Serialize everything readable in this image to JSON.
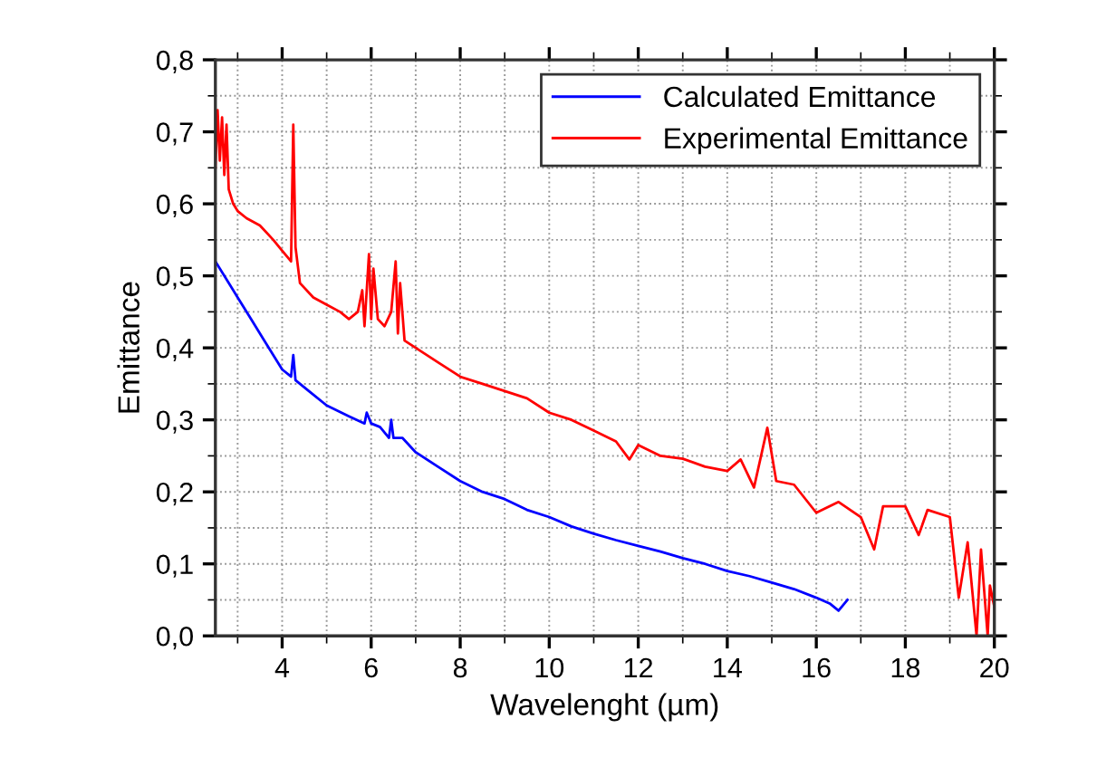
{
  "chart_data": {
    "type": "line",
    "xlabel": "Wavelenght (µm)",
    "ylabel": "Emittance",
    "xlim": [
      2.5,
      20
    ],
    "ylim": [
      0,
      0.8
    ],
    "xticks": [
      4,
      6,
      8,
      10,
      12,
      14,
      16,
      18,
      20
    ],
    "yticks": [
      {
        "value": 0,
        "label": "0,0"
      },
      {
        "value": 0.1,
        "label": "0,1"
      },
      {
        "value": 0.2,
        "label": "0,2"
      },
      {
        "value": 0.3,
        "label": "0,3"
      },
      {
        "value": 0.4,
        "label": "0,4"
      },
      {
        "value": 0.5,
        "label": "0,5"
      },
      {
        "value": 0.6,
        "label": "0,6"
      },
      {
        "value": 0.7,
        "label": "0,7"
      },
      {
        "value": 0.8,
        "label": "0,8"
      }
    ],
    "grid": true,
    "legend": "top right",
    "marker": "none",
    "line_style": "solid",
    "series": [
      {
        "name": "Calculated Emittance",
        "color": "#0000ff",
        "x": [
          2.5,
          2.8,
          3.0,
          3.3,
          3.6,
          4.0,
          4.2,
          4.25,
          4.3,
          4.6,
          5.0,
          5.5,
          5.85,
          5.9,
          6.0,
          6.2,
          6.4,
          6.45,
          6.5,
          6.7,
          7.0,
          7.5,
          8.0,
          8.5,
          9.0,
          9.5,
          10.0,
          10.5,
          11.0,
          11.5,
          12.0,
          12.5,
          13.0,
          13.5,
          14.0,
          14.5,
          15.0,
          15.5,
          16.0,
          16.3,
          16.5,
          16.7
        ],
        "values": [
          0.52,
          0.49,
          0.47,
          0.44,
          0.41,
          0.37,
          0.36,
          0.39,
          0.355,
          0.34,
          0.32,
          0.305,
          0.295,
          0.31,
          0.295,
          0.29,
          0.275,
          0.3,
          0.275,
          0.275,
          0.255,
          0.235,
          0.215,
          0.2,
          0.19,
          0.175,
          0.165,
          0.152,
          0.142,
          0.133,
          0.125,
          0.117,
          0.108,
          0.1,
          0.09,
          0.083,
          0.074,
          0.065,
          0.053,
          0.045,
          0.035,
          0.05
        ]
      },
      {
        "name": "Experimental Emittance",
        "color": "#ff0000",
        "x": [
          2.5,
          2.55,
          2.6,
          2.65,
          2.7,
          2.75,
          2.8,
          2.9,
          3.0,
          3.2,
          3.5,
          3.8,
          4.0,
          4.2,
          4.25,
          4.3,
          4.4,
          4.7,
          5.0,
          5.3,
          5.5,
          5.7,
          5.8,
          5.85,
          5.95,
          6.0,
          6.05,
          6.15,
          6.3,
          6.45,
          6.55,
          6.6,
          6.65,
          6.75,
          7.0,
          7.5,
          8.0,
          8.5,
          9.0,
          9.5,
          10.0,
          10.5,
          11.0,
          11.5,
          11.8,
          12.0,
          12.5,
          13.0,
          13.5,
          14.0,
          14.3,
          14.6,
          14.9,
          15.1,
          15.5,
          16.0,
          16.5,
          17.0,
          17.3,
          17.5,
          18.0,
          18.3,
          18.5,
          19.0,
          19.2,
          19.4,
          19.6,
          19.7,
          19.85,
          19.9,
          20.0
        ],
        "values": [
          0.65,
          0.73,
          0.66,
          0.72,
          0.64,
          0.71,
          0.62,
          0.6,
          0.59,
          0.58,
          0.57,
          0.55,
          0.535,
          0.52,
          0.71,
          0.54,
          0.49,
          0.47,
          0.46,
          0.45,
          0.44,
          0.45,
          0.48,
          0.43,
          0.53,
          0.44,
          0.51,
          0.44,
          0.43,
          0.45,
          0.52,
          0.42,
          0.49,
          0.41,
          0.4,
          0.38,
          0.36,
          0.35,
          0.34,
          0.33,
          0.31,
          0.3,
          0.285,
          0.27,
          0.245,
          0.265,
          0.25,
          0.246,
          0.235,
          0.229,
          0.245,
          0.206,
          0.289,
          0.215,
          0.21,
          0.171,
          0.186,
          0.165,
          0.12,
          0.18,
          0.18,
          0.14,
          0.175,
          0.165,
          0.053,
          0.13,
          0.0,
          0.12,
          0.0,
          0.07,
          0.04
        ]
      }
    ]
  }
}
